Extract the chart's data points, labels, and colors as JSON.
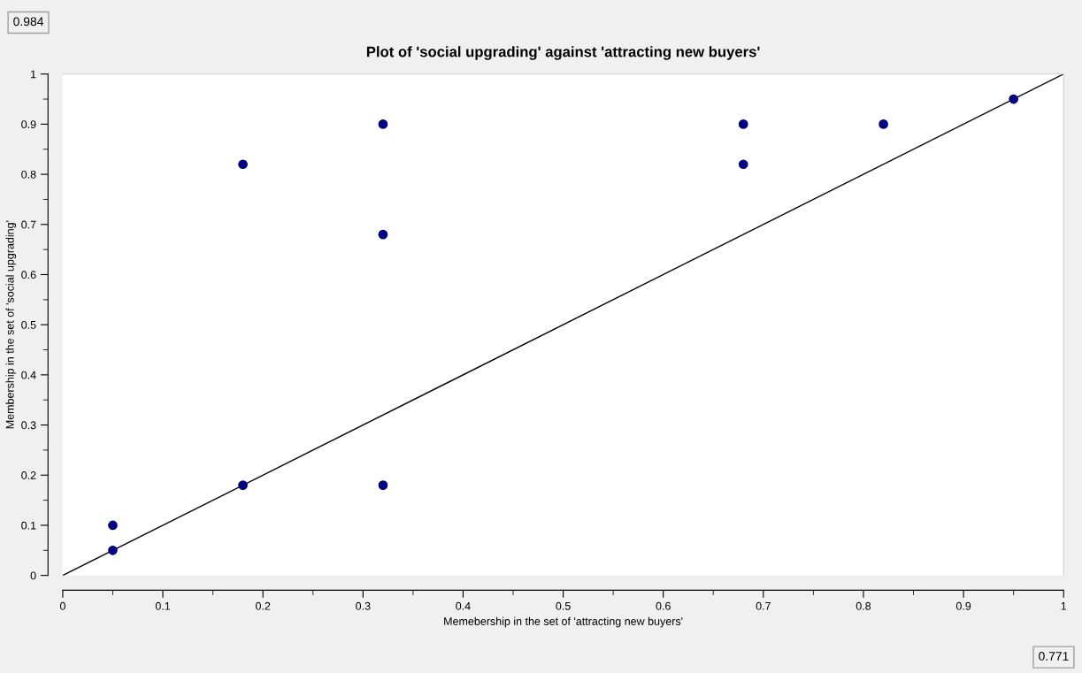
{
  "chart_data": {
    "type": "scatter",
    "title": "Plot of 'social upgrading' against 'attracting new buyers'",
    "xlabel": "Memebership in the set of 'attracting new buyers'",
    "ylabel": "Membership in the set of 'social upgrading'",
    "xlim": [
      0,
      1
    ],
    "ylim": [
      0,
      1
    ],
    "xticks": [
      0,
      0.1,
      0.2,
      0.3,
      0.4,
      0.5,
      0.6,
      0.7,
      0.8,
      0.9,
      1
    ],
    "yticks": [
      0,
      0.1,
      0.2,
      0.3,
      0.4,
      0.5,
      0.6,
      0.7,
      0.8,
      0.9,
      1
    ],
    "grid": false,
    "legend": false,
    "series": [
      {
        "marker": "circle",
        "color": "#000080",
        "x": [
          0.05,
          0.05,
          0.18,
          0.18,
          0.32,
          0.32,
          0.32,
          0.68,
          0.68,
          0.82,
          0.95
        ],
        "values": [
          0.1,
          0.05,
          0.18,
          0.82,
          0.9,
          0.68,
          0.18,
          0.9,
          0.82,
          0.9,
          0.95
        ]
      },
      {
        "type": "line",
        "color": "#000000",
        "x": [
          0,
          1
        ],
        "values": [
          0,
          1
        ]
      }
    ],
    "annotations": [
      "0.984",
      "0.771"
    ]
  }
}
